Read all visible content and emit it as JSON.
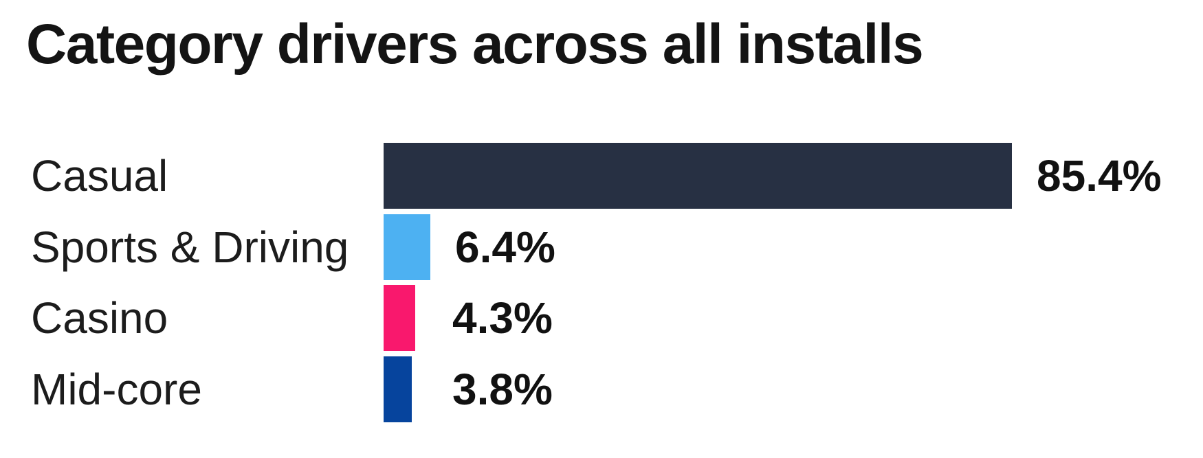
{
  "page": {
    "background": "#ffffff"
  },
  "chart_data": {
    "type": "bar",
    "orientation": "horizontal",
    "title": "Category drivers across all installs",
    "categories": [
      "Casual",
      "Sports & Driving",
      "Casino",
      "Mid-core"
    ],
    "values": [
      85.4,
      6.4,
      4.3,
      3.8
    ],
    "value_labels": [
      "85.4%",
      "6.4%",
      "4.3%",
      "3.8%"
    ],
    "bar_colors": [
      "#273043",
      "#4db1f2",
      "#f9186d",
      "#06449d"
    ],
    "xlabel": "",
    "ylabel": "",
    "xlim": [
      0,
      100
    ],
    "grid": false,
    "legend": false,
    "title_color": "#141414",
    "category_label_color": "#1c1c1c",
    "value_label_color": "#111111"
  }
}
